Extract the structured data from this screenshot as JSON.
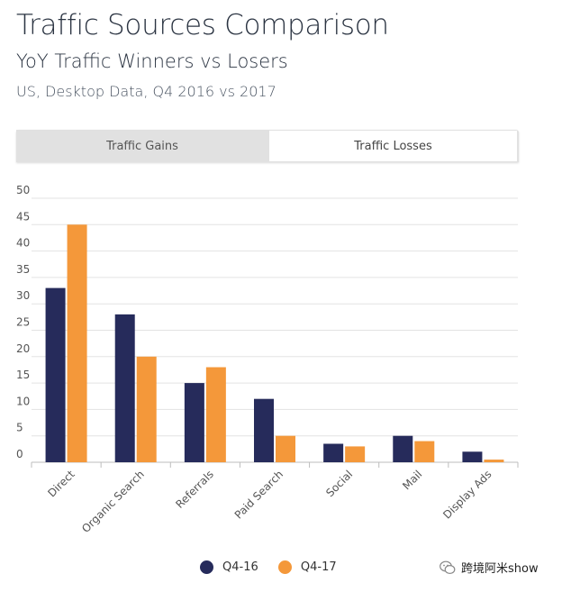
{
  "header": {
    "title": "Traffic Sources Comparison",
    "subtitle": "YoY Traffic Winners vs Losers",
    "description": "US, Desktop Data, Q4 2016 vs 2017"
  },
  "tabs": [
    {
      "label": "Traffic Gains",
      "active": false
    },
    {
      "label": "Traffic Losses",
      "active": true
    }
  ],
  "chart_data": {
    "type": "bar",
    "title": "Traffic Sources Comparison",
    "categories": [
      "Direct",
      "Organic Search",
      "Referrals",
      "Paid Search",
      "Social",
      "Mail",
      "Display Ads"
    ],
    "series": [
      {
        "name": "Q4-16",
        "color": "#262b5b",
        "values": [
          33,
          28,
          15,
          12,
          3.5,
          5,
          2
        ]
      },
      {
        "name": "Q4-17",
        "color": "#f4983a",
        "values": [
          45,
          20,
          18,
          5,
          3,
          4,
          0.5
        ]
      }
    ],
    "y_ticks": [
      "0",
      "5",
      "10",
      "15",
      "20",
      "25",
      "30",
      "35",
      "40",
      "45",
      "50"
    ],
    "ylim": [
      0,
      50
    ],
    "grid": true,
    "legend": "bottom-center",
    "xlabel": "",
    "ylabel": ""
  },
  "legend": {
    "items": [
      {
        "label": "Q4-16",
        "color": "#262b5b"
      },
      {
        "label": "Q4-17",
        "color": "#f4983a"
      }
    ]
  },
  "watermark": {
    "text": "跨境阿米show",
    "icon": "wechat-icon"
  }
}
